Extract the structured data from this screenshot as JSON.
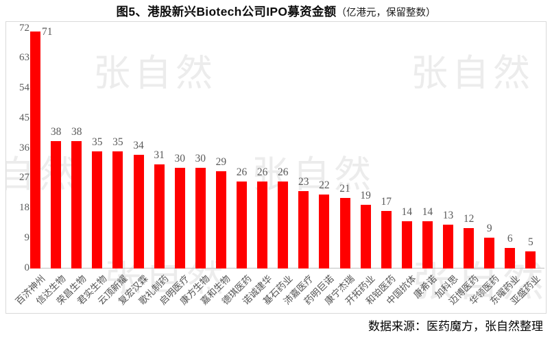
{
  "title": {
    "main": "图5、港股新兴Biotech公司IPO募资金额",
    "unit_note": "（亿港元，保留整数）"
  },
  "source_note": "数据来源：医药魔方，张自然整理",
  "watermark_text": "张自然",
  "colors": {
    "bar": "#ff0000",
    "value_label": "#595959",
    "axis_label": "#595959",
    "watermark": "#ececec",
    "chart_border": "#d9d9d9",
    "axis_line": "#bfbfbf",
    "title_text": "#0d0d0d"
  },
  "chart_data": {
    "type": "bar",
    "title": "图5、港股新兴Biotech公司IPO募资金额",
    "subtitle": "（亿港元，保留整数）",
    "unit": "亿港元",
    "categories": [
      "百济神州",
      "信达生物",
      "荣昌生物",
      "君实生物",
      "云顶新耀",
      "复宏汉霖",
      "歌礼制药",
      "启明医疗",
      "康方生物",
      "嘉和生物",
      "德琪医药",
      "诺诚建华",
      "基石药业",
      "沛嘉医疗",
      "药明巨诺",
      "康宁杰瑞",
      "开拓药业",
      "和铂医药",
      "中国抗体",
      "康希诺",
      "加科思",
      "迈博医药",
      "华领医药",
      "东曜药业",
      "亚盛药业"
    ],
    "values": [
      71,
      38,
      38,
      35,
      35,
      34,
      31,
      30,
      30,
      29,
      26,
      26,
      26,
      23,
      22,
      21,
      19,
      17,
      14,
      14,
      13,
      12,
      9,
      6,
      5
    ],
    "xlabel": "",
    "ylabel": "",
    "ylim": [
      0,
      72
    ],
    "yticks": [
      0,
      9,
      18,
      27,
      36,
      45,
      54,
      63,
      72
    ],
    "grid": false,
    "legend": false,
    "bar_color": "#ff0000",
    "value_labels_shown": true,
    "x_tick_rotation_deg": 45
  }
}
